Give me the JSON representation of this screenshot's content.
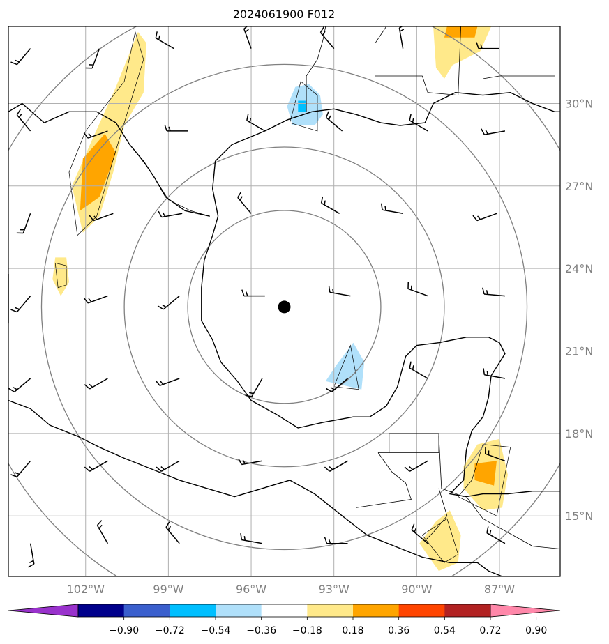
{
  "title": "2024061900 F012",
  "map": {
    "lon_range": [
      -104.8,
      -84.8
    ],
    "lat_range": [
      12.8,
      32.8
    ],
    "lon_ticks": [
      {
        "value": -102,
        "label": "102°W"
      },
      {
        "value": -99,
        "label": "99°W"
      },
      {
        "value": -96,
        "label": "96°W"
      },
      {
        "value": -93,
        "label": "93°W"
      },
      {
        "value": -90,
        "label": "90°W"
      },
      {
        "value": -87,
        "label": "87°W"
      }
    ],
    "lat_ticks": [
      {
        "value": 30,
        "label": "30°N"
      },
      {
        "value": 27,
        "label": "27°N"
      },
      {
        "value": 24,
        "label": "24°N"
      },
      {
        "value": 21,
        "label": "21°N"
      },
      {
        "value": 18,
        "label": "18°N"
      },
      {
        "value": 15,
        "label": "15°N"
      }
    ],
    "center": {
      "lon": -94.8,
      "lat": 22.6
    },
    "range_rings_deg": [
      3.5,
      5.8,
      8.8,
      11.5
    ],
    "grid": true
  },
  "colorbar": {
    "ticks": [
      "−0.90",
      "−0.72",
      "−0.54",
      "−0.36",
      "−0.18",
      "0.18",
      "0.36",
      "0.54",
      "0.72",
      "0.90"
    ],
    "colors": [
      "#9932cc",
      "#00008b",
      "#3a5fcd",
      "#00bfff",
      "#b0e0fa",
      "#ffffff",
      "#ffe98a",
      "#ffa500",
      "#ff4500",
      "#b22222",
      "#ff88aa"
    ]
  },
  "shaded_regions": [
    {
      "level": "0.18",
      "color": "#ffe98a",
      "points": [
        [
          -102.1,
          25.3
        ],
        [
          -102.5,
          27.0
        ],
        [
          -101.8,
          28.6
        ],
        [
          -100.9,
          30.6
        ],
        [
          -100.1,
          32.6
        ],
        [
          -99.8,
          32.2
        ],
        [
          -99.9,
          30.4
        ],
        [
          -100.6,
          29.2
        ],
        [
          -101.0,
          27.5
        ],
        [
          -101.5,
          25.9
        ]
      ]
    },
    {
      "level": "0.36",
      "color": "#ffa500",
      "points": [
        [
          -102.2,
          26.1
        ],
        [
          -102.1,
          28.0
        ],
        [
          -101.3,
          28.9
        ],
        [
          -100.9,
          28.2
        ],
        [
          -101.5,
          26.6
        ]
      ]
    },
    {
      "level": "0.18",
      "color": "#ffe98a",
      "points": [
        [
          -103.2,
          23.6
        ],
        [
          -103.1,
          24.4
        ],
        [
          -102.7,
          24.4
        ],
        [
          -102.6,
          23.5
        ],
        [
          -102.9,
          23.0
        ]
      ]
    },
    {
      "level": "0.18",
      "color": "#ffe98a",
      "points": [
        [
          -89.3,
          31.3
        ],
        [
          -89.4,
          32.8
        ],
        [
          -87.3,
          32.8
        ],
        [
          -87.7,
          31.9
        ],
        [
          -88.7,
          31.4
        ],
        [
          -89.0,
          30.9
        ]
      ]
    },
    {
      "level": "0.36",
      "color": "#ffa500",
      "points": [
        [
          -89.0,
          32.4
        ],
        [
          -88.9,
          32.8
        ],
        [
          -87.8,
          32.8
        ],
        [
          -87.9,
          32.4
        ]
      ]
    },
    {
      "level": "-0.18",
      "color": "#b0e0fa",
      "points": [
        [
          -94.5,
          29.2
        ],
        [
          -93.7,
          29.2
        ],
        [
          -93.4,
          29.6
        ],
        [
          -93.5,
          30.3
        ],
        [
          -93.9,
          30.7
        ],
        [
          -94.4,
          30.6
        ],
        [
          -94.7,
          29.9
        ]
      ]
    },
    {
      "level": "-0.36",
      "color": "#00bfff",
      "points": [
        [
          -94.3,
          29.7
        ],
        [
          -94.0,
          29.7
        ],
        [
          -94.0,
          30.1
        ],
        [
          -94.3,
          30.1
        ]
      ]
    },
    {
      "level": "-0.18",
      "color": "#b0e0fa",
      "points": [
        [
          -93.3,
          19.9
        ],
        [
          -92.0,
          19.6
        ],
        [
          -91.9,
          20.6
        ],
        [
          -92.3,
          21.3
        ],
        [
          -92.9,
          20.5
        ]
      ]
    },
    {
      "level": "0.18",
      "color": "#ffe98a",
      "points": [
        [
          -88.3,
          16.0
        ],
        [
          -87.6,
          15.2
        ],
        [
          -86.9,
          15.3
        ],
        [
          -86.7,
          16.5
        ],
        [
          -87.0,
          17.8
        ],
        [
          -87.8,
          17.6
        ],
        [
          -88.3,
          16.8
        ]
      ]
    },
    {
      "level": "0.36",
      "color": "#ffa500",
      "points": [
        [
          -87.9,
          16.3
        ],
        [
          -87.2,
          16.1
        ],
        [
          -87.1,
          17.0
        ],
        [
          -87.9,
          16.9
        ]
      ]
    },
    {
      "level": "0.18",
      "color": "#ffe98a",
      "points": [
        [
          -89.9,
          14.0
        ],
        [
          -89.2,
          13.0
        ],
        [
          -88.5,
          13.3
        ],
        [
          -88.4,
          14.3
        ],
        [
          -88.8,
          15.2
        ],
        [
          -89.3,
          14.8
        ]
      ]
    }
  ],
  "contour_lines": [
    [
      [
        -102.3,
        25.2
      ],
      [
        -102.6,
        27.5
      ],
      [
        -102.0,
        29.0
      ],
      [
        -100.6,
        30.8
      ],
      [
        -100.2,
        32.6
      ],
      [
        -99.9,
        31.6
      ],
      [
        -100.9,
        28.3
      ],
      [
        -101.6,
        25.9
      ]
    ],
    [
      [
        -103.0,
        23.3
      ],
      [
        -103.1,
        24.2
      ],
      [
        -102.7,
        24.1
      ],
      [
        -102.7,
        23.4
      ]
    ],
    [
      [
        -88.5,
        15.7
      ],
      [
        -87.1,
        15.0
      ],
      [
        -86.6,
        17.5
      ],
      [
        -87.6,
        17.6
      ],
      [
        -88.0,
        16.3
      ]
    ],
    [
      [
        -89.8,
        14.3
      ],
      [
        -88.9,
        14.9
      ],
      [
        -88.5,
        13.6
      ],
      [
        -89.0,
        13.3
      ]
    ],
    [
      [
        -94.6,
        29.3
      ],
      [
        -93.6,
        29.0
      ],
      [
        -93.6,
        30.3
      ],
      [
        -94.2,
        30.8
      ]
    ],
    [
      [
        -93.0,
        19.7
      ],
      [
        -92.1,
        19.6
      ],
      [
        -92.4,
        21.2
      ]
    ]
  ],
  "coastlines": [
    [
      [
        -104.8,
        29.7
      ],
      [
        -104.3,
        30.0
      ],
      [
        -103.5,
        29.3
      ],
      [
        -102.6,
        29.7
      ],
      [
        -101.6,
        29.7
      ],
      [
        -100.9,
        29.3
      ],
      [
        -100.4,
        28.5
      ],
      [
        -99.9,
        27.9
      ],
      [
        -99.5,
        27.3
      ],
      [
        -99.1,
        26.6
      ],
      [
        -98.4,
        26.1
      ],
      [
        -97.5,
        25.9
      ]
    ],
    [
      [
        -97.2,
        25.9
      ],
      [
        -97.4,
        25.2
      ],
      [
        -97.7,
        24.3
      ],
      [
        -97.8,
        23.3
      ],
      [
        -97.8,
        22.1
      ],
      [
        -97.4,
        21.4
      ],
      [
        -97.1,
        20.6
      ],
      [
        -96.5,
        19.9
      ],
      [
        -96.0,
        19.2
      ],
      [
        -95.1,
        18.7
      ],
      [
        -94.3,
        18.2
      ],
      [
        -93.4,
        18.4
      ],
      [
        -92.3,
        18.6
      ],
      [
        -91.7,
        18.6
      ],
      [
        -91.1,
        19.0
      ],
      [
        -90.7,
        19.7
      ],
      [
        -90.4,
        20.8
      ],
      [
        -90.0,
        21.2
      ],
      [
        -89.2,
        21.3
      ],
      [
        -88.2,
        21.5
      ],
      [
        -87.4,
        21.5
      ],
      [
        -87.0,
        21.3
      ],
      [
        -86.8,
        20.9
      ],
      [
        -87.3,
        20.1
      ],
      [
        -87.4,
        19.3
      ],
      [
        -87.6,
        18.6
      ],
      [
        -88.0,
        18.1
      ],
      [
        -88.2,
        17.4
      ],
      [
        -88.3,
        16.3
      ],
      [
        -88.8,
        15.8
      ],
      [
        -88.2,
        15.7
      ],
      [
        -87.6,
        15.8
      ],
      [
        -86.7,
        15.8
      ],
      [
        -85.8,
        15.9
      ],
      [
        -84.8,
        15.9
      ]
    ],
    [
      [
        -97.2,
        25.9
      ],
      [
        -97.4,
        26.9
      ],
      [
        -97.3,
        27.9
      ],
      [
        -96.7,
        28.5
      ],
      [
        -95.5,
        29.0
      ],
      [
        -94.7,
        29.4
      ],
      [
        -93.8,
        29.7
      ],
      [
        -93.0,
        29.8
      ],
      [
        -92.2,
        29.6
      ],
      [
        -91.3,
        29.3
      ],
      [
        -90.6,
        29.2
      ],
      [
        -89.7,
        29.3
      ],
      [
        -89.4,
        30.0
      ],
      [
        -88.6,
        30.4
      ],
      [
        -87.6,
        30.3
      ],
      [
        -86.6,
        30.4
      ],
      [
        -85.8,
        30.0
      ],
      [
        -85.0,
        29.7
      ],
      [
        -84.8,
        29.7
      ]
    ],
    [
      [
        -104.8,
        19.2
      ],
      [
        -104.0,
        18.9
      ],
      [
        -103.3,
        18.3
      ],
      [
        -102.3,
        17.9
      ],
      [
        -101.5,
        17.5
      ],
      [
        -100.6,
        17.1
      ],
      [
        -99.6,
        16.7
      ],
      [
        -98.6,
        16.3
      ],
      [
        -97.6,
        16.0
      ],
      [
        -96.6,
        15.7
      ],
      [
        -95.6,
        16.0
      ],
      [
        -94.6,
        16.3
      ],
      [
        -93.7,
        15.8
      ],
      [
        -92.7,
        15.0
      ],
      [
        -91.8,
        14.3
      ],
      [
        -90.8,
        13.9
      ],
      [
        -89.8,
        13.5
      ],
      [
        -88.8,
        13.3
      ],
      [
        -87.8,
        13.3
      ],
      [
        -87.4,
        13.0
      ],
      [
        -86.9,
        12.8
      ]
    ],
    [
      [
        -104.8,
        23.8
      ],
      [
        -104.8,
        22.0
      ]
    ]
  ],
  "borders": [
    [
      [
        -104.8,
        32.8
      ],
      [
        -102.0,
        32.8
      ]
    ],
    [
      [
        -97.5,
        25.9
      ],
      [
        -98.2,
        26.1
      ],
      [
        -99.0,
        26.5
      ],
      [
        -99.7,
        27.6
      ],
      [
        -100.3,
        28.4
      ]
    ],
    [
      [
        -91.4,
        17.3
      ],
      [
        -89.2,
        17.3
      ],
      [
        -89.2,
        18.0
      ],
      [
        -91.0,
        18.0
      ],
      [
        -91.0,
        17.3
      ]
    ],
    [
      [
        -91.4,
        17.3
      ],
      [
        -90.9,
        16.6
      ],
      [
        -90.4,
        16.2
      ],
      [
        -90.2,
        15.6
      ],
      [
        -92.2,
        15.3
      ]
    ],
    [
      [
        -89.2,
        17.9
      ],
      [
        -89.1,
        16.0
      ],
      [
        -88.3,
        15.7
      ]
    ],
    [
      [
        -89.2,
        16.0
      ],
      [
        -88.9,
        15.0
      ],
      [
        -89.4,
        14.4
      ],
      [
        -89.7,
        14.1
      ]
    ],
    [
      [
        -88.2,
        15.7
      ],
      [
        -87.6,
        14.9
      ],
      [
        -86.7,
        14.4
      ],
      [
        -85.8,
        13.9
      ],
      [
        -84.8,
        13.8
      ]
    ],
    [
      [
        -94.0,
        29.7
      ],
      [
        -94.0,
        31.0
      ],
      [
        -93.6,
        31.6
      ],
      [
        -93.4,
        32.3
      ],
      [
        -93.3,
        32.8
      ]
    ],
    [
      [
        -91.5,
        31.0
      ],
      [
        -89.8,
        31.0
      ],
      [
        -89.6,
        30.4
      ],
      [
        -88.5,
        30.3
      ],
      [
        -88.4,
        32.8
      ]
    ],
    [
      [
        -87.6,
        30.9
      ],
      [
        -87.0,
        31.0
      ],
      [
        -85.0,
        31.0
      ]
    ],
    [
      [
        -91.1,
        32.8
      ],
      [
        -91.5,
        32.2
      ]
    ]
  ],
  "wind_barbs_deg": [
    [
      -104,
      32,
      220
    ],
    [
      -101.5,
      32,
      200
    ],
    [
      -98.8,
      32,
      300
    ],
    [
      -96,
      32,
      340
    ],
    [
      -93,
      32,
      320
    ],
    [
      -90.5,
      32,
      350
    ],
    [
      -87,
      32,
      270
    ],
    [
      -104,
      29,
      320
    ],
    [
      -101.2,
      29,
      250
    ],
    [
      -98.3,
      29,
      270
    ],
    [
      -95.5,
      29,
      300
    ],
    [
      -92.7,
      29,
      310
    ],
    [
      -89.6,
      29,
      300
    ],
    [
      -86.8,
      29,
      260
    ],
    [
      -104,
      26,
      200
    ],
    [
      -101,
      26,
      250
    ],
    [
      -98.5,
      26,
      260
    ],
    [
      -96,
      26,
      320
    ],
    [
      -92.8,
      26,
      300
    ],
    [
      -90.5,
      26,
      280
    ],
    [
      -87.1,
      26,
      250
    ],
    [
      -104,
      23,
      220
    ],
    [
      -101.2,
      23,
      250
    ],
    [
      -98.6,
      23,
      230
    ],
    [
      -95.5,
      23,
      270
    ],
    [
      -92.4,
      23,
      280
    ],
    [
      -89.6,
      23,
      290
    ],
    [
      -86.8,
      23,
      275
    ],
    [
      -104,
      20,
      230
    ],
    [
      -101.2,
      20,
      240
    ],
    [
      -98.6,
      20,
      250
    ],
    [
      -95.6,
      20,
      210
    ],
    [
      -92.5,
      20,
      230
    ],
    [
      -89.6,
      20,
      300
    ],
    [
      -86.8,
      20,
      280
    ],
    [
      -104,
      17,
      220
    ],
    [
      -101.2,
      17,
      240
    ],
    [
      -98.6,
      17,
      240
    ],
    [
      -95.6,
      17,
      260
    ],
    [
      -92.5,
      17,
      240
    ],
    [
      -89.6,
      17,
      240
    ],
    [
      -86.8,
      17,
      290
    ],
    [
      -104,
      14,
      170
    ],
    [
      -101.2,
      14,
      330
    ],
    [
      -98.6,
      14,
      320
    ],
    [
      -95.6,
      14,
      280
    ],
    [
      -92.5,
      14,
      270
    ],
    [
      -89.6,
      14,
      310
    ],
    [
      -86.8,
      14,
      300
    ]
  ]
}
